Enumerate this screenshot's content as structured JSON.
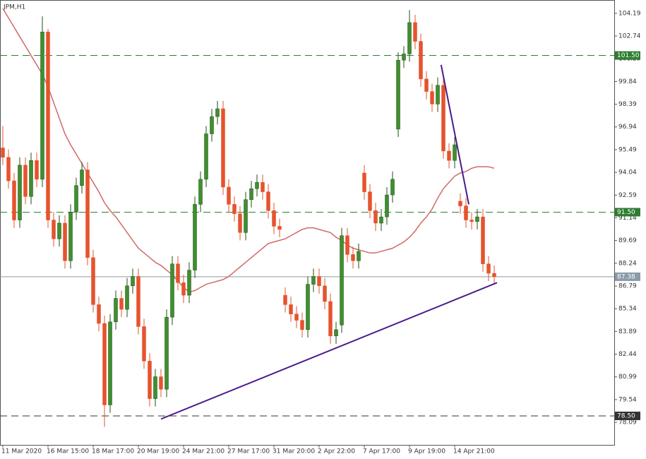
{
  "chart_data": {
    "type": "candlestick",
    "title": "JPM,H1",
    "categories": [
      "11 Mar 2020",
      null,
      null,
      null,
      null,
      null,
      null,
      null,
      "16 Mar 15:00",
      null,
      null,
      null,
      null,
      null,
      null,
      null,
      "18 Mar 17:00",
      null,
      null,
      null,
      null,
      null,
      null,
      null,
      "20 Mar 19:00",
      null,
      null,
      null,
      null,
      null,
      null,
      null,
      "24 Mar 21:00",
      null,
      null,
      null,
      null,
      null,
      null,
      null,
      "27 Mar 17:00",
      null,
      null,
      null,
      null,
      null,
      null,
      null,
      "31 Mar 20:00",
      null,
      null,
      null,
      null,
      null,
      null,
      null,
      "2 Apr 22:00",
      null,
      null,
      null,
      null,
      null,
      null,
      null,
      "7 Apr 17:00",
      null,
      null,
      null,
      null,
      null,
      null,
      null,
      "9 Apr 19:00",
      null,
      null,
      null,
      null,
      null,
      null,
      null,
      "14 Apr 21:00",
      null,
      null,
      null,
      null,
      null,
      null,
      null
    ],
    "open": [
      95.6,
      95.0,
      93.5,
      91.0,
      94.5,
      92.5,
      94.8,
      93.6,
      103.0,
      91.0,
      89.8,
      90.8,
      88.4,
      91.5,
      93.2,
      94.2,
      88.6,
      85.6,
      84.4,
      79.2,
      84.5,
      86.0,
      85.3,
      86.8,
      87.4,
      84.2,
      82.0,
      79.6,
      81.0,
      80.2,
      84.8,
      88.2,
      87.0,
      86.2,
      87.8,
      92.0,
      93.6,
      96.5,
      97.6,
      98.1,
      93.1,
      92.0,
      91.4,
      90.2,
      92.3,
      93.0,
      93.4,
      92.8,
      91.6,
      90.6,
      86.2,
      85.6,
      85.0,
      84.6,
      84.0,
      86.9,
      87.4,
      86.8,
      85.8,
      83.6,
      84.3,
      90.0,
      88.8,
      88.4,
      94.0,
      92.8,
      91.6,
      90.8,
      91.2,
      92.6,
      96.8,
      101.2,
      101.6,
      103.6,
      102.4,
      100.0,
      99.2,
      98.4,
      99.6,
      95.4,
      94.8,
      92.2,
      91.9,
      91.0,
      90.9,
      91.2,
      88.2,
      87.6
    ],
    "high": [
      97.0,
      95.5,
      94.0,
      95.0,
      95.0,
      95.3,
      95.3,
      104.0,
      103.2,
      91.5,
      91.3,
      91.3,
      92.0,
      93.7,
      94.7,
      94.7,
      89.1,
      86.1,
      84.9,
      85.0,
      86.5,
      86.5,
      87.3,
      87.9,
      87.9,
      84.7,
      82.5,
      81.5,
      81.5,
      85.3,
      88.7,
      88.7,
      87.5,
      88.3,
      92.5,
      94.1,
      97.0,
      98.1,
      98.6,
      98.6,
      93.6,
      92.5,
      91.9,
      92.8,
      93.5,
      93.9,
      93.9,
      93.3,
      92.1,
      91.1,
      86.7,
      86.1,
      85.5,
      85.1,
      87.4,
      87.9,
      87.9,
      87.3,
      86.3,
      84.5,
      90.5,
      90.5,
      89.3,
      89.5,
      94.5,
      93.3,
      92.1,
      91.7,
      93.1,
      94.1,
      101.7,
      102.1,
      104.4,
      104.1,
      102.9,
      100.5,
      99.7,
      100.1,
      100.1,
      95.9,
      96.3,
      92.7,
      92.4,
      91.5,
      91.7,
      91.7,
      88.7,
      88.1
    ],
    "low": [
      94.5,
      93.0,
      90.5,
      90.5,
      92.0,
      92.0,
      93.1,
      93.1,
      90.5,
      89.3,
      89.3,
      87.9,
      87.9,
      91.0,
      92.7,
      88.1,
      85.1,
      83.9,
      77.8,
      78.7,
      84.0,
      84.8,
      84.8,
      86.3,
      83.7,
      81.5,
      79.1,
      79.1,
      79.7,
      79.7,
      84.3,
      86.5,
      85.7,
      85.7,
      87.3,
      91.5,
      93.1,
      96.0,
      97.1,
      92.6,
      91.5,
      90.9,
      89.7,
      89.7,
      91.8,
      92.5,
      92.3,
      91.1,
      90.1,
      89.9,
      85.1,
      84.5,
      84.1,
      83.5,
      83.5,
      86.4,
      86.3,
      85.3,
      83.1,
      83.1,
      83.8,
      88.3,
      87.9,
      87.9,
      92.3,
      91.1,
      90.3,
      90.3,
      90.7,
      92.1,
      96.3,
      100.7,
      101.1,
      101.9,
      99.5,
      98.7,
      97.9,
      97.9,
      94.9,
      94.3,
      94.3,
      91.4,
      90.5,
      90.4,
      90.4,
      87.7,
      87.1,
      86.88
    ],
    "close": [
      95.0,
      93.5,
      91.0,
      94.5,
      92.5,
      94.8,
      93.6,
      103.0,
      91.0,
      89.8,
      90.8,
      88.4,
      91.5,
      93.2,
      94.2,
      88.6,
      85.6,
      84.4,
      79.2,
      84.5,
      86.0,
      85.3,
      86.8,
      87.4,
      84.2,
      82.0,
      79.6,
      81.0,
      80.2,
      84.8,
      88.2,
      87.0,
      86.2,
      87.8,
      92.0,
      93.6,
      96.5,
      97.6,
      98.1,
      93.1,
      92.0,
      91.4,
      90.2,
      92.3,
      93.0,
      93.4,
      92.8,
      91.6,
      90.6,
      90.4,
      85.6,
      85.0,
      84.6,
      84.0,
      86.9,
      87.4,
      86.8,
      85.8,
      83.6,
      84.0,
      90.0,
      88.8,
      88.4,
      89.0,
      92.8,
      91.6,
      90.8,
      91.2,
      92.6,
      93.6,
      101.2,
      101.6,
      103.6,
      102.4,
      100.0,
      99.2,
      98.4,
      99.6,
      95.4,
      94.8,
      95.8,
      91.9,
      91.0,
      90.9,
      91.2,
      88.2,
      87.6,
      87.38
    ],
    "up_color": "#3f8f2f",
    "down_color": "#e5532d",
    "moving_average": {
      "color": "#d06a6a",
      "values": [
        104.5,
        103.9,
        103.3,
        102.7,
        102.1,
        101.5,
        100.9,
        100.3,
        99.5,
        98.5,
        97.5,
        96.5,
        95.8,
        95.2,
        94.6,
        94.0,
        93.4,
        92.8,
        92.1,
        91.6,
        91.2,
        90.7,
        90.2,
        89.7,
        89.2,
        88.9,
        88.6,
        88.3,
        88.1,
        87.8,
        87.5,
        87.1,
        86.7,
        86.4,
        86.5,
        86.7,
        86.9,
        87.0,
        87.1,
        87.2,
        87.4,
        87.7,
        88.0,
        88.3,
        88.6,
        88.9,
        89.2,
        89.5,
        89.6,
        89.7,
        89.8,
        90.0,
        90.2,
        90.4,
        90.5,
        90.5,
        90.4,
        90.3,
        90.2,
        89.9,
        89.7,
        89.4,
        89.2,
        89.1,
        89.0,
        88.9,
        88.9,
        89.0,
        89.1,
        89.2,
        89.4,
        89.6,
        89.9,
        90.3,
        90.8,
        91.2,
        91.7,
        92.4,
        93.0,
        93.4,
        93.8,
        94.0,
        94.1,
        94.3,
        94.4,
        94.4,
        94.4,
        94.3
      ]
    },
    "levels": [
      {
        "value": 101.5,
        "label": "101.50",
        "color": "#2e7d32",
        "dashed": true
      },
      {
        "value": 91.5,
        "label": "91.50",
        "color": "#2e7d32",
        "dashed": true
      },
      {
        "value": 78.5,
        "label": "78.50",
        "color": "#333333",
        "dashed": true
      },
      {
        "value": 87.38,
        "label": "87.38",
        "color": "#8a9aa8",
        "dashed": false
      }
    ],
    "trendlines": [
      {
        "x": [
          28,
          87.5
        ],
        "y": [
          78.3,
          87.0
        ],
        "color": "#4b1a8c"
      },
      {
        "x": [
          77.6,
          82.5
        ],
        "y": [
          100.9,
          92.0
        ],
        "color": "#4b1a8c"
      }
    ],
    "ylim": [
      76.65,
      104.95
    ],
    "yticks": [
      104.19,
      102.74,
      101.29,
      99.84,
      98.39,
      96.94,
      95.49,
      94.04,
      92.59,
      91.14,
      89.69,
      88.24,
      86.79,
      85.34,
      83.89,
      82.44,
      80.99,
      79.54,
      78.09
    ]
  }
}
